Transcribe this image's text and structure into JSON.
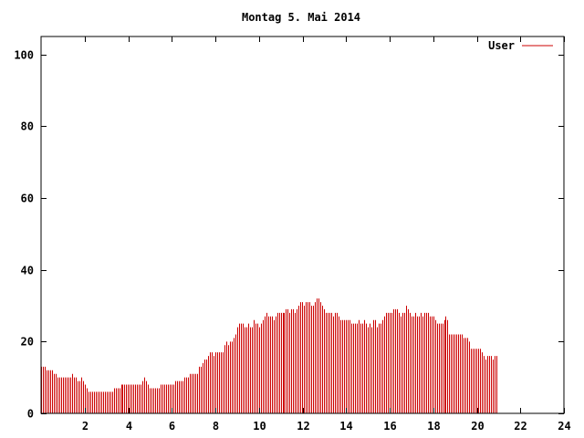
{
  "chart_data": {
    "type": "bar",
    "title": "Montag 5. Mai 2014",
    "xlabel": "",
    "ylabel": "",
    "xlim": [
      0,
      24
    ],
    "ylim": [
      0,
      105
    ],
    "x_ticks": [
      2,
      4,
      6,
      8,
      10,
      12,
      14,
      16,
      18,
      20,
      22,
      24
    ],
    "y_ticks": [
      0,
      20,
      40,
      60,
      80,
      100
    ],
    "grid": false,
    "legend_position": "top-right",
    "series": [
      {
        "name": "User",
        "color": "#cc0000",
        "interval_hours": 0.0833,
        "values": [
          13,
          13,
          13,
          12,
          12,
          12,
          12,
          11,
          11,
          10,
          10,
          10,
          10,
          10,
          10,
          10,
          10,
          11,
          10,
          10,
          9,
          9,
          10,
          9,
          8,
          7,
          6,
          6,
          6,
          6,
          6,
          6,
          6,
          6,
          6,
          6,
          6,
          6,
          6,
          6,
          7,
          7,
          7,
          7,
          8,
          8,
          8,
          8,
          8,
          8,
          8,
          8,
          8,
          8,
          8,
          8,
          9,
          10,
          9,
          8,
          7,
          7,
          7,
          7,
          7,
          7,
          8,
          8,
          8,
          8,
          8,
          8,
          8,
          8,
          9,
          9,
          9,
          9,
          9,
          10,
          10,
          10,
          11,
          11,
          11,
          11,
          11,
          13,
          13,
          14,
          15,
          15,
          16,
          17,
          17,
          16,
          17,
          17,
          17,
          17,
          17,
          19,
          20,
          19,
          20,
          20,
          21,
          22,
          24,
          25,
          25,
          25,
          24,
          24,
          25,
          24,
          24,
          26,
          25,
          25,
          24,
          25,
          26,
          27,
          28,
          27,
          27,
          27,
          26,
          27,
          28,
          28,
          28,
          28,
          28,
          29,
          29,
          28,
          29,
          29,
          28,
          29,
          30,
          31,
          31,
          30,
          31,
          31,
          31,
          30,
          30,
          31,
          32,
          32,
          31,
          30,
          29,
          28,
          28,
          28,
          28,
          27,
          28,
          28,
          27,
          26,
          26,
          26,
          26,
          26,
          26,
          25,
          25,
          25,
          25,
          26,
          25,
          25,
          26,
          25,
          24,
          25,
          24,
          26,
          26,
          24,
          25,
          25,
          26,
          27,
          28,
          28,
          28,
          28,
          29,
          29,
          29,
          28,
          27,
          28,
          28,
          30,
          29,
          28,
          27,
          27,
          28,
          27,
          27,
          28,
          27,
          28,
          28,
          28,
          27,
          27,
          27,
          26,
          25,
          25,
          25,
          25,
          26,
          27,
          26,
          22,
          22,
          22,
          22,
          22,
          22,
          22,
          22,
          21,
          21,
          21,
          20,
          18,
          18,
          18,
          18,
          18,
          18,
          17,
          16,
          15,
          16,
          16,
          16,
          15,
          16,
          16
        ]
      }
    ]
  }
}
